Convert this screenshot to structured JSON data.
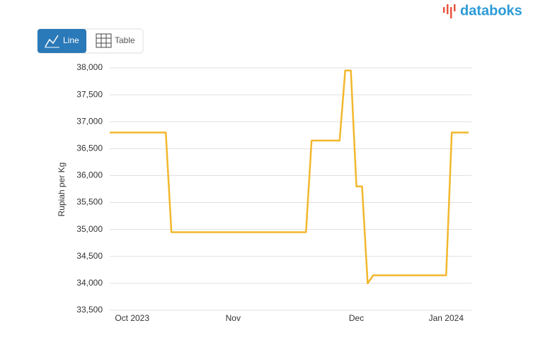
{
  "ui": {
    "buttons": [
      "Line",
      "Table"
    ],
    "logo": "databoks"
  },
  "chart_data": {
    "type": "line",
    "y_label": "Rupiah per Kg",
    "categories": [
      null,
      null,
      null,
      null,
      "Oct 2023",
      null,
      null,
      null,
      null,
      null,
      null,
      null,
      null,
      null,
      null,
      null,
      null,
      null,
      null,
      null,
      null,
      null,
      "Nov",
      null,
      null,
      null,
      null,
      null,
      null,
      null,
      null,
      null,
      null,
      null,
      null,
      null,
      null,
      null,
      null,
      null,
      null,
      null,
      null,
      null,
      "Dec",
      null,
      null,
      null,
      null,
      null,
      null,
      null,
      null,
      null,
      null,
      null,
      null,
      null,
      null,
      null,
      "Jan 2024",
      null,
      null,
      null,
      null
    ],
    "series": [
      {
        "name": "Rupiah per Kg",
        "color": "#f2b72c",
        "values": [
          36800,
          36800,
          36800,
          36800,
          36800,
          36800,
          36800,
          36800,
          36800,
          36800,
          36800,
          34950,
          34950,
          34950,
          34950,
          34950,
          34950,
          34950,
          34950,
          34950,
          34950,
          34950,
          34950,
          34950,
          34950,
          34950,
          34950,
          34950,
          34950,
          34950,
          34950,
          34950,
          34950,
          34950,
          34950,
          34950,
          36650,
          36650,
          36650,
          36650,
          36650,
          36650,
          37950,
          37950,
          35800,
          35800,
          34000,
          34150,
          34150,
          34150,
          34150,
          34150,
          34150,
          34150,
          34150,
          34150,
          34150,
          34150,
          34150,
          34150,
          34150,
          36800,
          36800,
          36800,
          36800
        ]
      }
    ],
    "ylim": [
      33500,
      38000
    ],
    "yticks": [
      {
        "value": 33500,
        "label": "33,500"
      },
      {
        "value": 34000,
        "label": "34,000"
      },
      {
        "value": 34500,
        "label": "34,500"
      },
      {
        "value": 35000,
        "label": "35,000"
      },
      {
        "value": 35500,
        "label": "35,500"
      },
      {
        "value": 36000,
        "label": "36,000"
      },
      {
        "value": 36500,
        "label": "36,500"
      },
      {
        "value": 37000,
        "label": "37,000"
      },
      {
        "value": 37500,
        "label": "37,500"
      },
      {
        "value": 38000,
        "label": "38,000"
      }
    ],
    "grid": true
  }
}
